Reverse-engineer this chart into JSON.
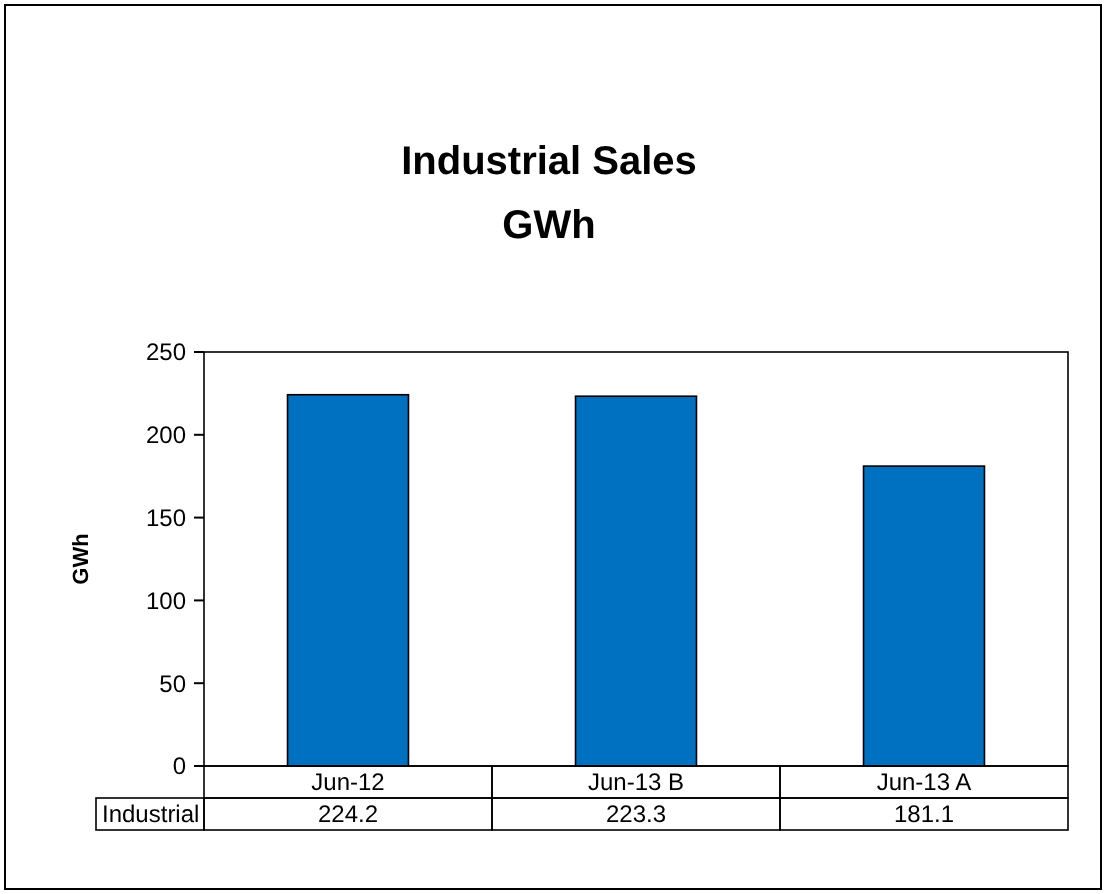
{
  "chart_data": {
    "type": "bar",
    "title": "Industrial Sales\nGWh",
    "ylabel": "GWh",
    "categories": [
      "Jun-12",
      "Jun-13 B",
      "Jun-13 A"
    ],
    "series": [
      {
        "name": "Industrial",
        "color": "#0070c0",
        "values": [
          224.2,
          223.3,
          181.1
        ]
      }
    ],
    "ylim": [
      0,
      250
    ],
    "yticks": [
      0,
      50,
      100,
      150,
      200,
      250
    ],
    "grid": false,
    "legend": "bottom",
    "data_labels": true
  }
}
